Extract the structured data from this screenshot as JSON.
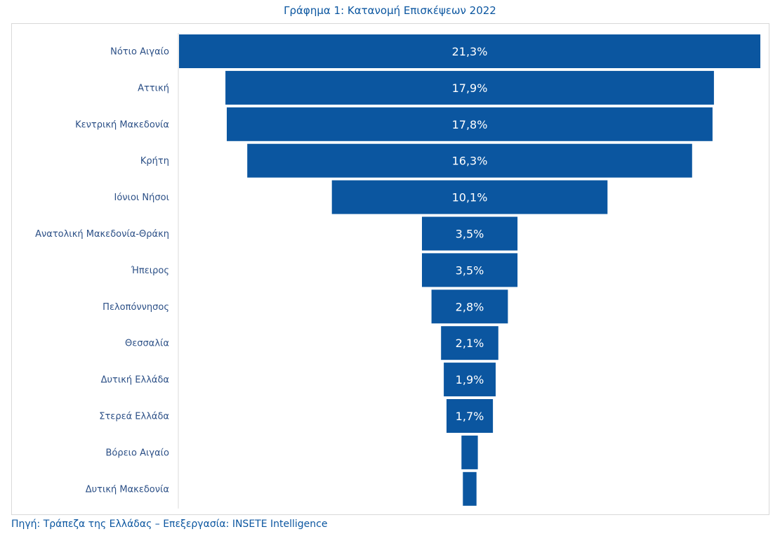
{
  "chart_data": {
    "type": "bar",
    "subtype": "funnel",
    "title": "Γράφημα 1: Κατανομή Επισκέψεων 2022",
    "unit": "%",
    "bar_color": "#0b56a0",
    "categories": [
      "Νότιο Αιγαίο",
      "Αττική",
      "Κεντρική Μακεδονία",
      "Κρήτη",
      "Ιόνιοι Νήσοι",
      "Ανατολική Μακεδονία-Θράκη",
      "Ήπειρος",
      "Πελοπόννησος",
      "Θεσσαλία",
      "Δυτική Ελλάδα",
      "Στερεά Ελλάδα",
      "Βόρειο Αιγαίο",
      "Δυτική Μακεδονία"
    ],
    "values": [
      21.3,
      17.9,
      17.8,
      16.3,
      10.1,
      3.5,
      3.5,
      2.8,
      2.1,
      1.9,
      1.7,
      0.6,
      0.5
    ],
    "labels": [
      "21,3%",
      "17,9%",
      "17,8%",
      "16,3%",
      "10,1%",
      "3,5%",
      "3,5%",
      "2,8%",
      "2,1%",
      "1,9%",
      "1,7%",
      "",
      ""
    ],
    "grid": false,
    "legend": "none"
  },
  "source": "Πηγή: Τράπεζα της Ελλάδας – Επεξεργασία: INSETE Intelligence"
}
